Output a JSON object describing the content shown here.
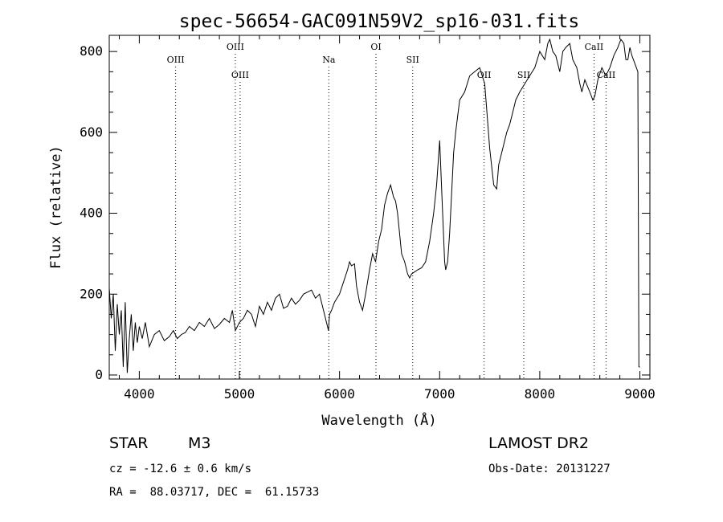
{
  "chart_data": {
    "type": "line",
    "title": "spec-56654-GAC091N59V2_sp16-031.fits",
    "xlabel": "Wavelength (Å)",
    "ylabel": "Flux (relative)",
    "xlim": [
      3700,
      9100
    ],
    "ylim": [
      -10,
      840
    ],
    "x_ticks": [
      4000,
      5000,
      6000,
      7000,
      8000,
      9000
    ],
    "y_ticks": [
      0,
      200,
      400,
      600,
      800
    ],
    "grid": false,
    "series": [
      {
        "x": [
          3700,
          3720,
          3740,
          3760,
          3780,
          3800,
          3820,
          3840,
          3860,
          3880,
          3900,
          3920,
          3940,
          3960,
          3980,
          4000,
          4030,
          4060,
          4100,
          4150,
          4200,
          4250,
          4300,
          4340,
          4380,
          4420,
          4460,
          4500,
          4550,
          4600,
          4650,
          4700,
          4750,
          4800,
          4850,
          4900,
          4930,
          4960,
          5000,
          5040,
          5080,
          5120,
          5160,
          5200,
          5240,
          5280,
          5320,
          5360,
          5400,
          5440,
          5480,
          5520,
          5560,
          5600,
          5640,
          5680,
          5720,
          5760,
          5800,
          5840,
          5870,
          5890,
          5900,
          5920,
          5950,
          6000,
          6040,
          6080,
          6100,
          6120,
          6150,
          6170,
          6200,
          6230,
          6260,
          6300,
          6330,
          6360,
          6390,
          6420,
          6450,
          6480,
          6510,
          6540,
          6560,
          6580,
          6600,
          6620,
          6650,
          6680,
          6700,
          6720,
          6750,
          6780,
          6820,
          6860,
          6900,
          6940,
          6970,
          7000,
          7030,
          7050,
          7060,
          7080,
          7100,
          7120,
          7140,
          7160,
          7180,
          7200,
          7250,
          7300,
          7350,
          7400,
          7450,
          7500,
          7540,
          7570,
          7590,
          7610,
          7630,
          7650,
          7670,
          7700,
          7730,
          7760,
          7800,
          7850,
          7900,
          7950,
          8000,
          8050,
          8080,
          8100,
          8130,
          8160,
          8200,
          8230,
          8260,
          8300,
          8330,
          8370,
          8400,
          8420,
          8450,
          8500,
          8530,
          8550,
          8580,
          8620,
          8660,
          8700,
          8740,
          8780,
          8810,
          8840,
          8860,
          8880,
          8900,
          8920,
          8950,
          8980,
          8990,
          9000
        ],
        "y": [
          215,
          140,
          200,
          60,
          175,
          100,
          160,
          20,
          180,
          5,
          90,
          150,
          60,
          130,
          80,
          120,
          90,
          130,
          70,
          100,
          110,
          85,
          95,
          110,
          90,
          100,
          105,
          120,
          110,
          130,
          120,
          140,
          115,
          125,
          140,
          130,
          160,
          110,
          130,
          140,
          160,
          150,
          120,
          170,
          150,
          180,
          160,
          190,
          200,
          165,
          170,
          190,
          175,
          185,
          200,
          205,
          210,
          190,
          200,
          160,
          130,
          110,
          150,
          160,
          180,
          200,
          230,
          260,
          280,
          270,
          275,
          220,
          180,
          160,
          200,
          260,
          300,
          280,
          330,
          360,
          420,
          450,
          470,
          440,
          430,
          400,
          350,
          300,
          280,
          250,
          240,
          250,
          255,
          260,
          265,
          280,
          330,
          400,
          470,
          580,
          400,
          280,
          260,
          280,
          350,
          450,
          550,
          600,
          640,
          680,
          700,
          740,
          750,
          760,
          720,
          560,
          470,
          460,
          520,
          540,
          560,
          580,
          600,
          620,
          650,
          680,
          700,
          720,
          740,
          760,
          800,
          780,
          820,
          830,
          800,
          790,
          750,
          800,
          810,
          820,
          780,
          760,
          720,
          700,
          730,
          700,
          680,
          690,
          730,
          760,
          740,
          760,
          790,
          810,
          830,
          820,
          780,
          780,
          810,
          790,
          770,
          750,
          20,
          20
        ]
      }
    ],
    "line_markers": [
      {
        "label": "OIII",
        "x": 4363,
        "row": "upper"
      },
      {
        "label": "OIII",
        "x": 4959,
        "row": "top"
      },
      {
        "label": "OIII",
        "x": 5007,
        "row": "lower"
      },
      {
        "label": "Na",
        "x": 5893,
        "row": "upper"
      },
      {
        "label": "OI",
        "x": 6364,
        "row": "top"
      },
      {
        "label": "SII",
        "x": 6731,
        "row": "upper"
      },
      {
        "label": "OII",
        "x": 7444,
        "row": "lower"
      },
      {
        "label": "SII",
        "x": 7840,
        "row": "lower"
      },
      {
        "label": "CaII",
        "x": 8542,
        "row": "top"
      },
      {
        "label": "CaII",
        "x": 8662,
        "row": "lower"
      }
    ]
  },
  "info": {
    "object_class": "STAR",
    "subclass": "M3",
    "survey": "LAMOST DR2",
    "cz": "cz = -12.6 ± 0.6 km/s",
    "obs_date": "Obs-Date: 20131227",
    "coords": "RA =  88.03717, DEC =  61.15733"
  }
}
